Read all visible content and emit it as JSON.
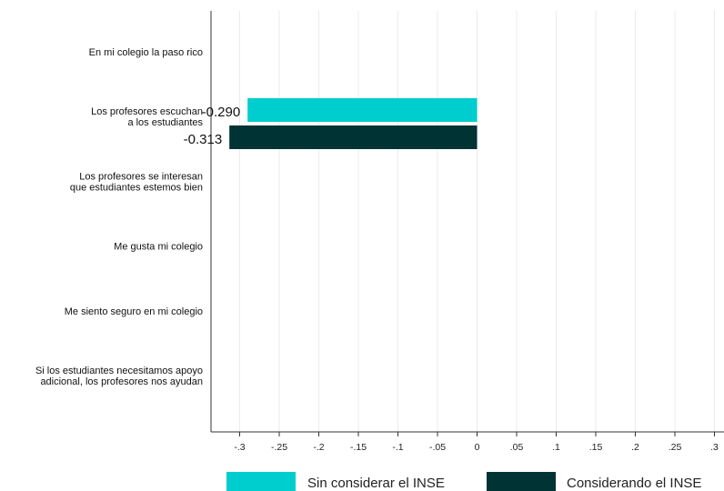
{
  "chart_data": {
    "type": "bar",
    "orientation": "horizontal",
    "title": "",
    "xlabel": "",
    "ylabel": "",
    "categories": [
      [
        "En mi colegio la paso rico"
      ],
      [
        "Los profesores escuchan",
        "a los estudiantes"
      ],
      [
        "Los profesores se interesan",
        "que estudiantes estemos bien"
      ],
      [
        "Me gusta mi colegio"
      ],
      [
        "Me siento seguro en mi colegio"
      ],
      [
        "Si los estudiantes necesitamos apoyo",
        "adicional, los profesores nos ayudan"
      ]
    ],
    "series": [
      {
        "name": "Sin considerar el INSE",
        "color": "#00cdcd",
        "values": [
          null,
          -0.29,
          null,
          null,
          null,
          null
        ]
      },
      {
        "name": "Considerando el INSE",
        "color": "#003333",
        "values": [
          null,
          -0.313,
          null,
          null,
          null,
          null
        ]
      }
    ],
    "data_labels": [
      {
        "series": 0,
        "category": 1,
        "text": "-0.290"
      },
      {
        "series": 1,
        "category": 1,
        "text": "-0.313"
      }
    ],
    "xlim": [
      -0.34,
      0.31
    ],
    "xticks": [
      -0.3,
      -0.25,
      -0.2,
      -0.15,
      -0.1,
      -0.05,
      0,
      0.05,
      0.1,
      0.15,
      0.2,
      0.25,
      0.3
    ],
    "xtick_labels": [
      "-.3",
      "-.25",
      "-.2",
      "-.15",
      "-.1",
      "-.05",
      "0",
      ".05",
      ".1",
      ".15",
      ".2",
      ".25",
      ".3"
    ],
    "grid": "vertical",
    "legend": {
      "position": "bottom"
    }
  }
}
